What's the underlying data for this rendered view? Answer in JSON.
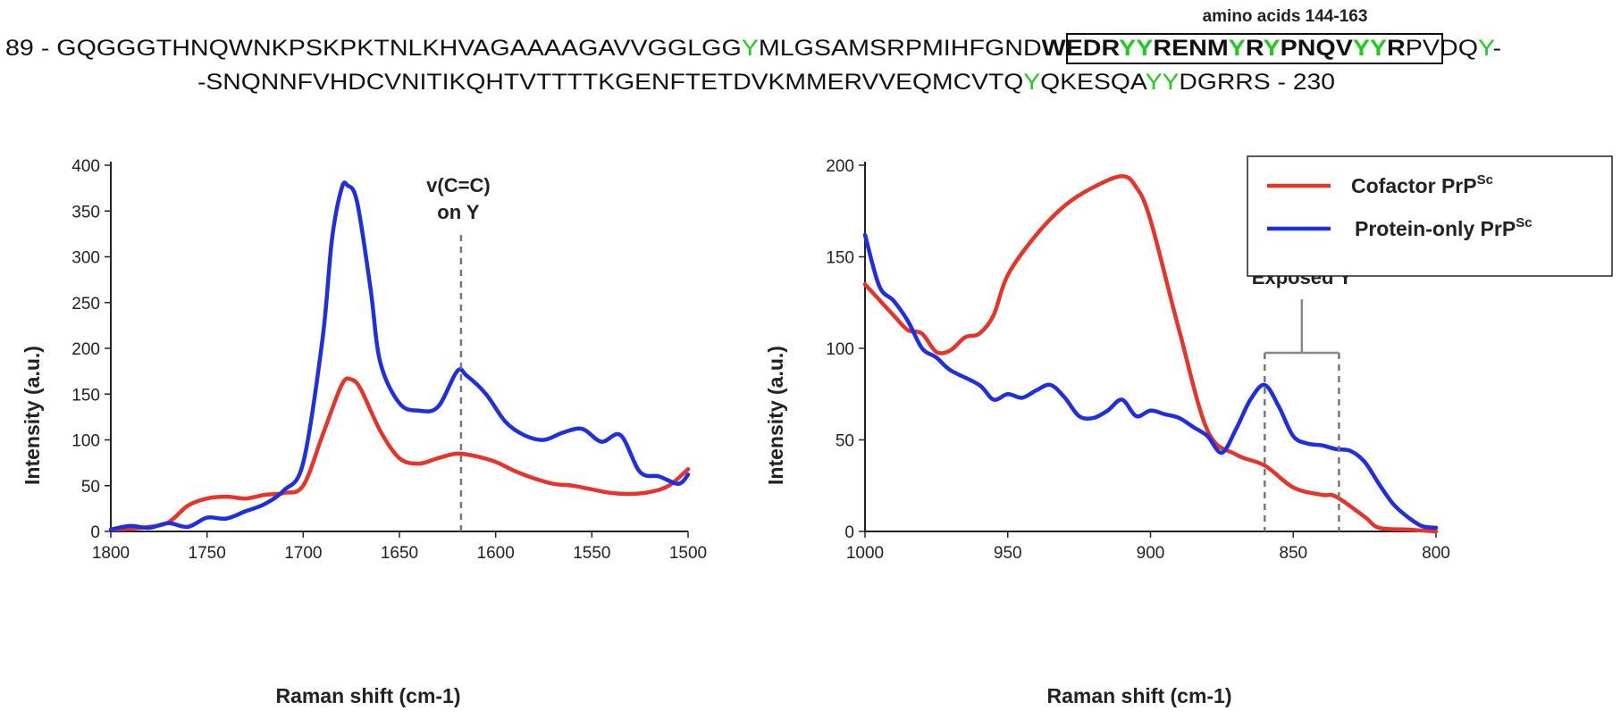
{
  "sequence": {
    "highlight_color": "#22c922",
    "box_label": "amino acids 144-163",
    "line1": {
      "prefix": "89 - ",
      "pre_box": "GQGGGTHNQWNKPSKPKTNLKHVAGAAAAGAVVGGLGGYMLGSAMSRPMIHFGND",
      "boxed": "WEDRYYRENMYRYPNQVYYR",
      "post_box": "PVDQY-"
    },
    "line2": {
      "text": "-SNQNNFVHDCVNITIKQHTVTTTTKGENFTETDVKMMERVVEQMCVTQYQKESQAYYDGRRS",
      "suffix": " - 230"
    }
  },
  "legend": {
    "items": [
      {
        "label": "Cofactor PrP",
        "sup": "Sc",
        "color": "#e8332a"
      },
      {
        "label": "Protein-only PrP",
        "sup": "Sc",
        "color": "#1f2ee0"
      }
    ]
  },
  "chart_data": [
    {
      "type": "line",
      "xlabel": "Raman shift (cm-1)",
      "ylabel": "Intensity (a.u.)",
      "xlim": [
        1800,
        1500
      ],
      "ylim": [
        0,
        400
      ],
      "xticks": [
        1800,
        1750,
        1700,
        1650,
        1600,
        1550,
        1500
      ],
      "yticks": [
        0,
        50,
        100,
        150,
        200,
        250,
        300,
        350,
        400
      ],
      "marker": {
        "x": 1618,
        "label_line1": "v(C=C)",
        "label_line2": "on Y"
      },
      "series": [
        {
          "name": "Cofactor PrP Sc",
          "color": "#e8332a",
          "x": [
            1800,
            1790,
            1780,
            1770,
            1760,
            1750,
            1740,
            1730,
            1720,
            1710,
            1700,
            1690,
            1680,
            1675,
            1670,
            1660,
            1650,
            1640,
            1630,
            1620,
            1610,
            1600,
            1590,
            1580,
            1570,
            1560,
            1550,
            1540,
            1530,
            1520,
            1510,
            1500
          ],
          "y": [
            2,
            3,
            5,
            10,
            28,
            36,
            38,
            36,
            40,
            42,
            50,
            105,
            160,
            166,
            155,
            110,
            80,
            74,
            80,
            85,
            82,
            76,
            66,
            58,
            52,
            50,
            46,
            42,
            41,
            43,
            50,
            68
          ]
        },
        {
          "name": "Protein-only PrP Sc",
          "color": "#1f2ee0",
          "x": [
            1800,
            1790,
            1780,
            1770,
            1760,
            1750,
            1740,
            1730,
            1720,
            1710,
            1700,
            1690,
            1685,
            1680,
            1677,
            1672,
            1665,
            1660,
            1650,
            1640,
            1630,
            1620,
            1615,
            1605,
            1595,
            1585,
            1575,
            1565,
            1555,
            1545,
            1535,
            1525,
            1515,
            1505,
            1500
          ],
          "y": [
            2,
            6,
            4,
            9,
            5,
            15,
            14,
            22,
            30,
            45,
            75,
            210,
            320,
            375,
            378,
            360,
            265,
            185,
            140,
            132,
            136,
            175,
            170,
            150,
            120,
            105,
            100,
            108,
            112,
            98,
            105,
            65,
            60,
            52,
            62
          ]
        }
      ]
    },
    {
      "type": "line",
      "xlabel": "Raman shift (cm-1)",
      "ylabel": "Intensity (a.u.)",
      "xlim": [
        1000,
        800
      ],
      "ylim": [
        0,
        200
      ],
      "xticks": [
        1000,
        950,
        900,
        850,
        800
      ],
      "yticks": [
        0,
        50,
        100,
        150,
        200
      ],
      "annotation": {
        "label": "Exposed Y",
        "x_left": 860,
        "x_right": 834
      },
      "series": [
        {
          "name": "Cofactor PrP Sc",
          "color": "#e8332a",
          "x": [
            1000,
            990,
            985,
            980,
            975,
            970,
            965,
            960,
            955,
            950,
            940,
            930,
            920,
            910,
            905,
            900,
            890,
            880,
            870,
            860,
            850,
            840,
            835,
            825,
            820,
            810,
            800
          ],
          "y": [
            135,
            118,
            110,
            108,
            98,
            99,
            106,
            108,
            118,
            140,
            162,
            178,
            188,
            194,
            188,
            170,
            110,
            55,
            42,
            36,
            24,
            20,
            19,
            8,
            2,
            1,
            0
          ]
        },
        {
          "name": "Protein-only PrP Sc",
          "color": "#1f2ee0",
          "x": [
            1000,
            995,
            990,
            985,
            980,
            975,
            970,
            960,
            955,
            950,
            945,
            940,
            935,
            930,
            925,
            920,
            915,
            910,
            905,
            900,
            895,
            890,
            885,
            880,
            875,
            870,
            865,
            860,
            855,
            850,
            845,
            840,
            835,
            830,
            825,
            820,
            815,
            810,
            805,
            800
          ],
          "y": [
            162,
            134,
            126,
            115,
            100,
            95,
            88,
            80,
            72,
            75,
            73,
            77,
            80,
            73,
            63,
            62,
            66,
            72,
            63,
            66,
            64,
            62,
            57,
            52,
            43,
            56,
            72,
            80,
            68,
            52,
            48,
            47,
            45,
            44,
            38,
            26,
            15,
            8,
            3,
            2
          ]
        }
      ]
    }
  ]
}
